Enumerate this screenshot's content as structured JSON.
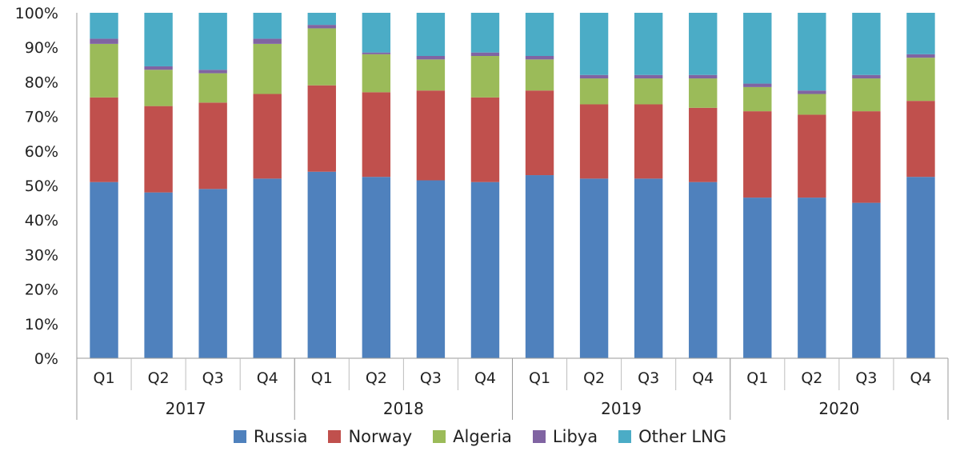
{
  "chart_data": {
    "type": "bar",
    "stacked": true,
    "percent_stacked": true,
    "ylim": [
      0,
      100
    ],
    "yticks": [
      "0%",
      "10%",
      "20%",
      "30%",
      "40%",
      "50%",
      "60%",
      "70%",
      "80%",
      "90%",
      "100%"
    ],
    "groups": [
      {
        "label": "2017",
        "categories": [
          "Q1",
          "Q2",
          "Q3",
          "Q4"
        ]
      },
      {
        "label": "2018",
        "categories": [
          "Q1",
          "Q2",
          "Q3",
          "Q4"
        ]
      },
      {
        "label": "2019",
        "categories": [
          "Q1",
          "Q2",
          "Q3",
          "Q4"
        ]
      },
      {
        "label": "2020",
        "categories": [
          "Q1",
          "Q2",
          "Q3",
          "Q4"
        ]
      }
    ],
    "series": [
      {
        "name": "Russia",
        "color": "#4f81bd",
        "values": [
          51,
          48,
          49,
          52,
          54,
          52.5,
          51.5,
          51,
          53,
          52,
          52,
          51,
          46.5,
          46.5,
          45,
          52.5
        ]
      },
      {
        "name": "Norway",
        "color": "#c0504d",
        "values": [
          24.5,
          25,
          25,
          24.5,
          25,
          24.5,
          26,
          24.5,
          24.5,
          21.5,
          21.5,
          21.5,
          25,
          24,
          26.5,
          22
        ]
      },
      {
        "name": "Algeria",
        "color": "#9bbb59",
        "values": [
          15.5,
          10.5,
          8.5,
          14.5,
          16.5,
          11,
          9,
          12,
          9,
          7.5,
          7.5,
          8.5,
          7,
          6,
          9.5,
          12.5
        ]
      },
      {
        "name": "Libya",
        "color": "#8064a2",
        "values": [
          1.5,
          1,
          1,
          1.5,
          1,
          0.5,
          1,
          1,
          1,
          1,
          1,
          1,
          1,
          1,
          1,
          1
        ]
      },
      {
        "name": "Other LNG",
        "color": "#4bacc6",
        "values": [
          7.5,
          15.5,
          16.5,
          7.5,
          3.5,
          11.5,
          12.5,
          11.5,
          12.5,
          18,
          18,
          18,
          20.5,
          22.5,
          18,
          12
        ]
      }
    ],
    "legend": {
      "position": "bottom"
    }
  }
}
